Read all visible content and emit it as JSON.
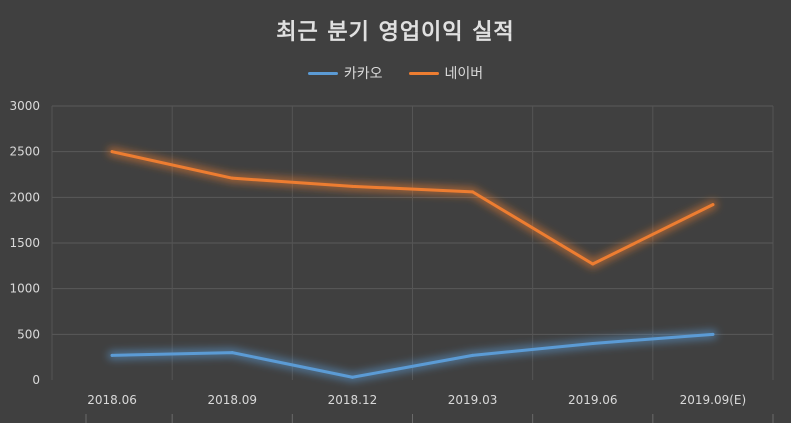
{
  "chart_data": {
    "type": "line",
    "title": "최근 분기 영업이익 실적",
    "categories": [
      "2018.06",
      "2018.09",
      "2018.12",
      "2019.03",
      "2019.06",
      "2019.09(E)"
    ],
    "series": [
      {
        "name": "카카오",
        "color": "#5b9bd5",
        "values": [
          270,
          300,
          30,
          270,
          400,
          500
        ]
      },
      {
        "name": "네이버",
        "color": "#ed7d31",
        "values": [
          2500,
          2210,
          2120,
          2060,
          1270,
          1920
        ]
      }
    ],
    "ylim": [
      0,
      3000
    ],
    "yticks": [
      "0",
      "500",
      "1000",
      "1500",
      "2000",
      "2500",
      "3000"
    ],
    "grid": true,
    "legend_position": "top"
  }
}
